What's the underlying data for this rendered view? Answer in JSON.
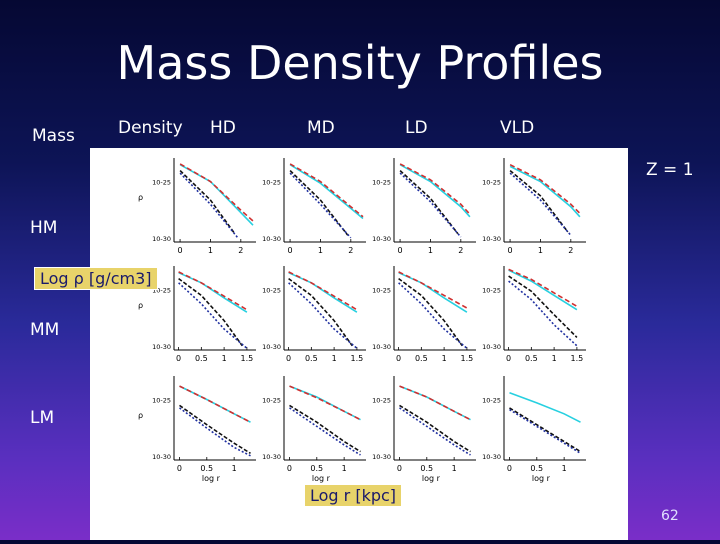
{
  "slide": {
    "title": "Mass Density Profiles",
    "column_headers": {
      "mass": "Mass",
      "density": "Density",
      "hd": "HD",
      "md": "MD",
      "ld": "LD",
      "vld": "VLD"
    },
    "redshift_label": "Z = 1",
    "row_labels": [
      "HM",
      "MM",
      "LM"
    ],
    "y_axis_box": "Log ρ [g/cm3]",
    "x_axis_box": "Log r [kpc]",
    "slide_number": "62"
  },
  "chart_data": {
    "type": "line",
    "rows": [
      "HM",
      "MM",
      "LM"
    ],
    "columns": [
      "HD",
      "MD",
      "LD",
      "VLD"
    ],
    "panel_ylabel": "ρ",
    "panel_xlabel": "log r",
    "row_x_ticks": [
      [
        "0",
        "1",
        "2"
      ],
      [
        "0",
        "0.5",
        "1",
        "1.5"
      ],
      [
        "0",
        "0.5",
        "1"
      ]
    ],
    "row_x_ranges": [
      [
        -0.2,
        2.5
      ],
      [
        -0.1,
        1.7
      ],
      [
        -0.1,
        1.4
      ]
    ],
    "series_colors": {
      "cyan": "#27d0e0",
      "red": "#d03030",
      "dark": "#101010",
      "blue": "#2030a0"
    },
    "panels": [
      [
        {
          "ytick_labels": [
            "10-25",
            "10-30"
          ],
          "cyan": [
            [
              0,
              0.92
            ],
            [
              1,
              0.72
            ],
            [
              2,
              0.35
            ],
            [
              2.4,
              0.2
            ]
          ],
          "red": [
            [
              0,
              0.93
            ],
            [
              1,
              0.72
            ],
            [
              2,
              0.38
            ],
            [
              2.4,
              0.25
            ]
          ],
          "dark": [
            [
              0,
              0.85
            ],
            [
              1,
              0.5
            ],
            [
              1.8,
              0.1
            ]
          ],
          "blue": [
            [
              0,
              0.82
            ],
            [
              1,
              0.45
            ],
            [
              1.9,
              0.05
            ]
          ]
        },
        {
          "ytick_labels": [
            "10-25",
            "10-30"
          ],
          "cyan": [
            [
              0,
              0.92
            ],
            [
              1,
              0.7
            ],
            [
              2,
              0.4
            ],
            [
              2.4,
              0.28
            ]
          ],
          "red": [
            [
              0,
              0.93
            ],
            [
              1,
              0.72
            ],
            [
              2,
              0.42
            ],
            [
              2.4,
              0.3
            ]
          ],
          "dark": [
            [
              0,
              0.85
            ],
            [
              1,
              0.5
            ],
            [
              1.9,
              0.08
            ]
          ],
          "blue": [
            [
              0,
              0.82
            ],
            [
              1,
              0.45
            ],
            [
              2,
              0.05
            ]
          ]
        },
        {
          "ytick_labels": [
            "10-25",
            "10-30"
          ],
          "cyan": [
            [
              0,
              0.92
            ],
            [
              1,
              0.72
            ],
            [
              2,
              0.42
            ],
            [
              2.3,
              0.3
            ]
          ],
          "red": [
            [
              0,
              0.93
            ],
            [
              1,
              0.74
            ],
            [
              2,
              0.45
            ],
            [
              2.3,
              0.33
            ]
          ],
          "dark": [
            [
              0,
              0.85
            ],
            [
              1,
              0.52
            ],
            [
              1.9,
              0.1
            ]
          ],
          "blue": [
            [
              0,
              0.82
            ],
            [
              1,
              0.48
            ],
            [
              2,
              0.06
            ]
          ]
        },
        {
          "ytick_labels": [
            "10-25",
            "10-30"
          ],
          "cyan": [
            [
              0,
              0.9
            ],
            [
              1,
              0.72
            ],
            [
              2,
              0.42
            ],
            [
              2.3,
              0.3
            ]
          ],
          "red": [
            [
              0,
              0.92
            ],
            [
              1,
              0.74
            ],
            [
              2,
              0.45
            ],
            [
              2.3,
              0.34
            ]
          ],
          "dark": [
            [
              0,
              0.85
            ],
            [
              1,
              0.55
            ],
            [
              1.9,
              0.12
            ]
          ],
          "blue": [
            [
              0,
              0.82
            ],
            [
              1,
              0.5
            ],
            [
              2,
              0.08
            ]
          ]
        }
      ],
      [
        {
          "ytick_labels": [
            "10-25",
            "10-30"
          ],
          "cyan": [
            [
              0,
              0.92
            ],
            [
              0.5,
              0.8
            ],
            [
              1,
              0.62
            ],
            [
              1.5,
              0.45
            ]
          ],
          "red": [
            [
              0,
              0.93
            ],
            [
              0.5,
              0.8
            ],
            [
              1,
              0.64
            ],
            [
              1.5,
              0.48
            ]
          ],
          "dark": [
            [
              0,
              0.85
            ],
            [
              0.5,
              0.65
            ],
            [
              1,
              0.35
            ],
            [
              1.4,
              0.05
            ]
          ],
          "blue": [
            [
              0,
              0.8
            ],
            [
              0.5,
              0.55
            ],
            [
              1,
              0.25
            ],
            [
              1.5,
              0.02
            ]
          ]
        },
        {
          "ytick_labels": [
            "10-25",
            "10-30"
          ],
          "cyan": [
            [
              0,
              0.92
            ],
            [
              0.5,
              0.8
            ],
            [
              1,
              0.62
            ],
            [
              1.5,
              0.45
            ]
          ],
          "red": [
            [
              0,
              0.93
            ],
            [
              0.5,
              0.8
            ],
            [
              1,
              0.64
            ],
            [
              1.5,
              0.48
            ]
          ],
          "dark": [
            [
              0,
              0.85
            ],
            [
              0.5,
              0.65
            ],
            [
              1,
              0.35
            ],
            [
              1.4,
              0.05
            ]
          ],
          "blue": [
            [
              0,
              0.8
            ],
            [
              0.5,
              0.55
            ],
            [
              1,
              0.25
            ],
            [
              1.5,
              0.02
            ]
          ]
        },
        {
          "ytick_labels": [
            "10-25",
            "10-30"
          ],
          "cyan": [
            [
              0,
              0.92
            ],
            [
              0.5,
              0.8
            ],
            [
              1,
              0.62
            ],
            [
              1.5,
              0.45
            ]
          ],
          "red": [
            [
              0,
              0.93
            ],
            [
              0.5,
              0.8
            ],
            [
              1,
              0.65
            ],
            [
              1.5,
              0.5
            ]
          ],
          "dark": [
            [
              0,
              0.85
            ],
            [
              0.5,
              0.65
            ],
            [
              1,
              0.35
            ],
            [
              1.4,
              0.05
            ]
          ],
          "blue": [
            [
              0,
              0.8
            ],
            [
              0.5,
              0.55
            ],
            [
              1,
              0.25
            ],
            [
              1.5,
              0.02
            ]
          ]
        },
        {
          "ytick_labels": [
            "10-25",
            "10-30"
          ],
          "cyan": [
            [
              0,
              0.95
            ],
            [
              0.5,
              0.82
            ],
            [
              1,
              0.65
            ],
            [
              1.5,
              0.48
            ]
          ],
          "red": [
            [
              0,
              0.96
            ],
            [
              0.5,
              0.84
            ],
            [
              1,
              0.68
            ],
            [
              1.5,
              0.52
            ]
          ],
          "dark": [
            [
              0,
              0.88
            ],
            [
              0.5,
              0.7
            ],
            [
              1,
              0.42
            ],
            [
              1.5,
              0.15
            ]
          ],
          "blue": [
            [
              0,
              0.82
            ],
            [
              0.5,
              0.6
            ],
            [
              1,
              0.3
            ],
            [
              1.5,
              0.05
            ]
          ]
        }
      ],
      [
        {
          "ytick_labels": [
            "10-25",
            "10-30"
          ],
          "cyan": [
            [
              0,
              0.88
            ],
            [
              0.5,
              0.72
            ],
            [
              1,
              0.55
            ],
            [
              1.3,
              0.45
            ]
          ],
          "red": [
            [
              0,
              0.88
            ],
            [
              0.5,
              0.72
            ],
            [
              1,
              0.55
            ],
            [
              1.3,
              0.45
            ]
          ],
          "dark": [
            [
              0,
              0.65
            ],
            [
              0.5,
              0.42
            ],
            [
              1,
              0.2
            ],
            [
              1.3,
              0.08
            ]
          ],
          "blue": [
            [
              0,
              0.62
            ],
            [
              0.5,
              0.38
            ],
            [
              1,
              0.15
            ],
            [
              1.3,
              0.05
            ]
          ]
        },
        {
          "ytick_labels": [
            "10-25",
            "10-30"
          ],
          "cyan": [
            [
              0,
              0.88
            ],
            [
              0.5,
              0.75
            ],
            [
              1,
              0.58
            ],
            [
              1.3,
              0.48
            ]
          ],
          "red": [
            [
              0,
              0.88
            ],
            [
              0.5,
              0.74
            ],
            [
              1,
              0.58
            ],
            [
              1.3,
              0.48
            ]
          ],
          "dark": [
            [
              0,
              0.65
            ],
            [
              0.5,
              0.45
            ],
            [
              1,
              0.22
            ],
            [
              1.3,
              0.1
            ]
          ],
          "blue": [
            [
              0,
              0.62
            ],
            [
              0.5,
              0.4
            ],
            [
              1,
              0.18
            ],
            [
              1.3,
              0.06
            ]
          ]
        },
        {
          "ytick_labels": [
            "10-25",
            "10-30"
          ],
          "cyan": [
            [
              0,
              0.88
            ],
            [
              0.5,
              0.75
            ],
            [
              1,
              0.58
            ],
            [
              1.3,
              0.48
            ]
          ],
          "red": [
            [
              0,
              0.88
            ],
            [
              0.5,
              0.75
            ],
            [
              1,
              0.58
            ],
            [
              1.3,
              0.48
            ]
          ],
          "dark": [
            [
              0,
              0.65
            ],
            [
              0.5,
              0.45
            ],
            [
              1,
              0.22
            ],
            [
              1.3,
              0.1
            ]
          ],
          "blue": [
            [
              0,
              0.62
            ],
            [
              0.5,
              0.4
            ],
            [
              1,
              0.18
            ],
            [
              1.3,
              0.06
            ]
          ]
        },
        {
          "ytick_labels": [
            "10-25",
            "10-30"
          ],
          "cyan": [
            [
              0,
              0.8
            ],
            [
              0.5,
              0.68
            ],
            [
              1,
              0.55
            ],
            [
              1.3,
              0.45
            ]
          ],
          "red": [],
          "dark": [
            [
              0,
              0.62
            ],
            [
              0.5,
              0.42
            ],
            [
              1,
              0.22
            ],
            [
              1.3,
              0.1
            ]
          ],
          "blue": [
            [
              0,
              0.6
            ],
            [
              0.5,
              0.4
            ],
            [
              1,
              0.2
            ],
            [
              1.3,
              0.08
            ]
          ]
        }
      ]
    ]
  }
}
